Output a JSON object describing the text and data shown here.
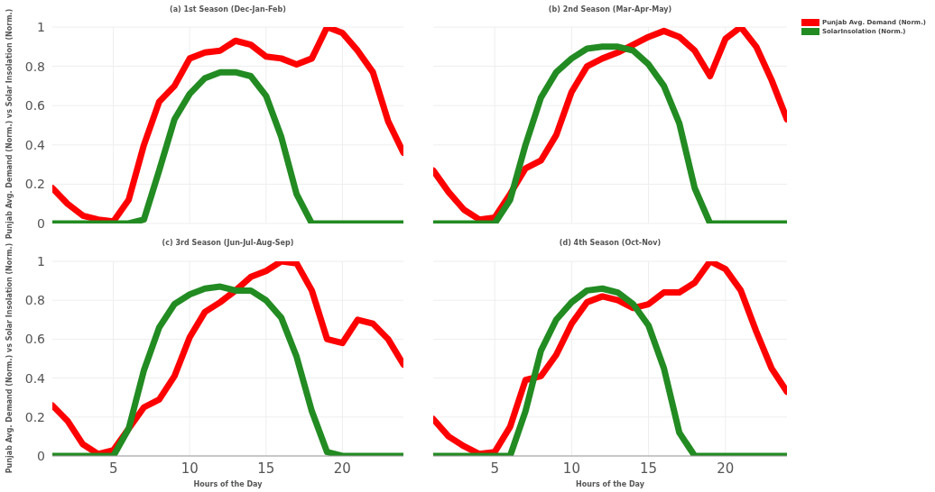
{
  "chart_data": [
    {
      "type": "line",
      "title": "(a) 1st Season (Dec-Jan-Feb)",
      "ylabel": "Punjab Avg. Demand (Norm.) vs Solar Insolation (Norm.)",
      "x": [
        1,
        2,
        3,
        4,
        5,
        6,
        7,
        8,
        9,
        10,
        11,
        12,
        13,
        14,
        15,
        16,
        17,
        18,
        19,
        20,
        21,
        22,
        23,
        24
      ],
      "xlim": [
        1,
        24
      ],
      "xticks": [
        5,
        10,
        15,
        20
      ],
      "ylim": [
        0,
        1
      ],
      "yticks": [
        0,
        0.2,
        0.4,
        0.6,
        0.8,
        1
      ],
      "tick_labels": "y",
      "grid": true,
      "legend": false,
      "marker": "none",
      "line_style": "solid",
      "series": [
        {
          "color": "#ff0000",
          "values": [
            0.18,
            0.1,
            0.04,
            0.02,
            0.01,
            0.12,
            0.4,
            0.62,
            0.7,
            0.84,
            0.87,
            0.88,
            0.93,
            0.91,
            0.85,
            0.84,
            0.81,
            0.84,
            1.0,
            0.97,
            0.88,
            0.77,
            0.52,
            0.36
          ]
        },
        {
          "color": "#228b22",
          "values": [
            0,
            0,
            0,
            0,
            0,
            0,
            0.02,
            0.27,
            0.53,
            0.66,
            0.74,
            0.77,
            0.77,
            0.75,
            0.65,
            0.44,
            0.15,
            0,
            0,
            0,
            0,
            0,
            0,
            0
          ]
        }
      ]
    },
    {
      "type": "line",
      "title": "(b) 2nd Season (Mar-Apr-May)",
      "x": [
        1,
        2,
        3,
        4,
        5,
        6,
        7,
        8,
        9,
        10,
        11,
        12,
        13,
        14,
        15,
        16,
        17,
        18,
        19,
        20,
        21,
        22,
        23,
        24
      ],
      "xlim": [
        1,
        24
      ],
      "xticks": [
        5,
        10,
        15,
        20
      ],
      "ylim": [
        0,
        1
      ],
      "yticks": [
        0,
        0.2,
        0.4,
        0.6,
        0.8,
        1
      ],
      "tick_labels": false,
      "grid": true,
      "legend": "top right",
      "marker": "none",
      "line_style": "solid",
      "series": [
        {
          "name": "Punjab Avg. Demand (Norm.)",
          "color": "#ff0000",
          "values": [
            0.27,
            0.16,
            0.07,
            0.02,
            0.03,
            0.15,
            0.28,
            0.32,
            0.45,
            0.67,
            0.8,
            0.84,
            0.87,
            0.91,
            0.95,
            0.98,
            0.95,
            0.88,
            0.75,
            0.94,
            1.0,
            0.9,
            0.73,
            0.53
          ]
        },
        {
          "name": "SolarInsolation (Norm.)",
          "color": "#228b22",
          "values": [
            0,
            0,
            0,
            0,
            0,
            0.12,
            0.4,
            0.64,
            0.77,
            0.84,
            0.89,
            0.9,
            0.9,
            0.88,
            0.81,
            0.7,
            0.51,
            0.18,
            0,
            0,
            0,
            0,
            0,
            0
          ]
        }
      ]
    },
    {
      "type": "line",
      "title": "(c) 3rd Season (Jun-Jul-Aug-Sep)",
      "xlabel": "Hours of the Day",
      "ylabel": "Punjab Avg. Demand (Norm.) vs Solar Insolation (Norm.)",
      "x": [
        1,
        2,
        3,
        4,
        5,
        6,
        7,
        8,
        9,
        10,
        11,
        12,
        13,
        14,
        15,
        16,
        17,
        18,
        19,
        20,
        21,
        22,
        23,
        24
      ],
      "xlim": [
        1,
        24
      ],
      "xticks": [
        5,
        10,
        15,
        20
      ],
      "ylim": [
        0,
        1
      ],
      "yticks": [
        0,
        0.2,
        0.4,
        0.6,
        0.8,
        1
      ],
      "grid": true,
      "legend": false,
      "marker": "none",
      "line_style": "solid",
      "series": [
        {
          "color": "#ff0000",
          "values": [
            0.26,
            0.18,
            0.06,
            0.01,
            0.03,
            0.14,
            0.25,
            0.29,
            0.41,
            0.61,
            0.74,
            0.79,
            0.85,
            0.92,
            0.95,
            1.0,
            0.99,
            0.85,
            0.6,
            0.58,
            0.7,
            0.68,
            0.6,
            0.47
          ]
        },
        {
          "color": "#228b22",
          "values": [
            0,
            0,
            0,
            0,
            0,
            0.14,
            0.44,
            0.66,
            0.78,
            0.83,
            0.86,
            0.87,
            0.85,
            0.85,
            0.8,
            0.71,
            0.51,
            0.23,
            0.02,
            0,
            0,
            0,
            0,
            0
          ]
        }
      ]
    },
    {
      "type": "line",
      "title": "(d) 4th Season (Oct-Nov)",
      "xlabel": "Hours of the Day",
      "x": [
        1,
        2,
        3,
        4,
        5,
        6,
        7,
        8,
        9,
        10,
        11,
        12,
        13,
        14,
        15,
        16,
        17,
        18,
        19,
        20,
        21,
        22,
        23,
        24
      ],
      "xlim": [
        1,
        24
      ],
      "xticks": [
        5,
        10,
        15,
        20
      ],
      "ylim": [
        0,
        1
      ],
      "yticks": [
        0,
        0.2,
        0.4,
        0.6,
        0.8,
        1
      ],
      "tick_labels": "x",
      "grid": true,
      "legend": false,
      "marker": "none",
      "line_style": "solid",
      "series": [
        {
          "color": "#ff0000",
          "values": [
            0.19,
            0.1,
            0.05,
            0.01,
            0.02,
            0.15,
            0.39,
            0.41,
            0.52,
            0.68,
            0.79,
            0.82,
            0.8,
            0.76,
            0.78,
            0.84,
            0.84,
            0.89,
            1.0,
            0.96,
            0.85,
            0.64,
            0.45,
            0.33
          ]
        },
        {
          "color": "#228b22",
          "values": [
            0,
            0,
            0,
            0,
            0,
            0,
            0.23,
            0.54,
            0.7,
            0.79,
            0.85,
            0.86,
            0.84,
            0.78,
            0.67,
            0.45,
            0.12,
            0,
            0,
            0,
            0,
            0,
            0,
            0
          ]
        }
      ]
    }
  ]
}
